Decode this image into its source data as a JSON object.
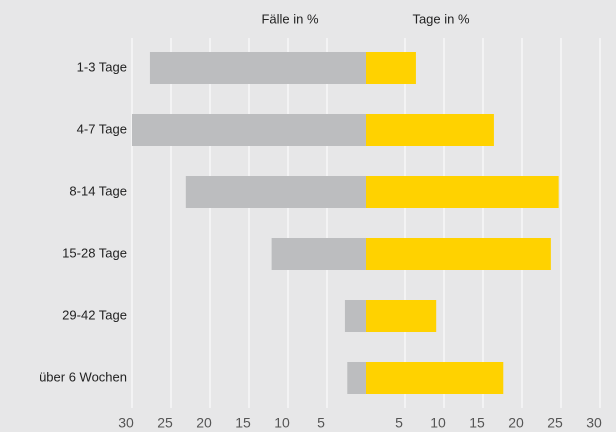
{
  "chart_data": {
    "type": "butterfly",
    "categories": [
      "1-3 Tage",
      "4-7 Tage",
      "8-14 Tage",
      "15-28 Tage",
      "29-42 Tage",
      "über 6 Wochen"
    ],
    "series": [
      {
        "name": "Fälle in %",
        "color": "#bcbdbf",
        "values": [
          27.7,
          30,
          23.1,
          12.1,
          2.7,
          2.4
        ]
      },
      {
        "name": "Tage in %",
        "color": "#ffd200",
        "values": [
          6.4,
          16.4,
          24.7,
          23.7,
          9.0,
          17.6
        ]
      }
    ],
    "xlim": [
      0,
      30
    ],
    "xticks": [
      5,
      10,
      15,
      20,
      25,
      30
    ],
    "grid": true
  }
}
